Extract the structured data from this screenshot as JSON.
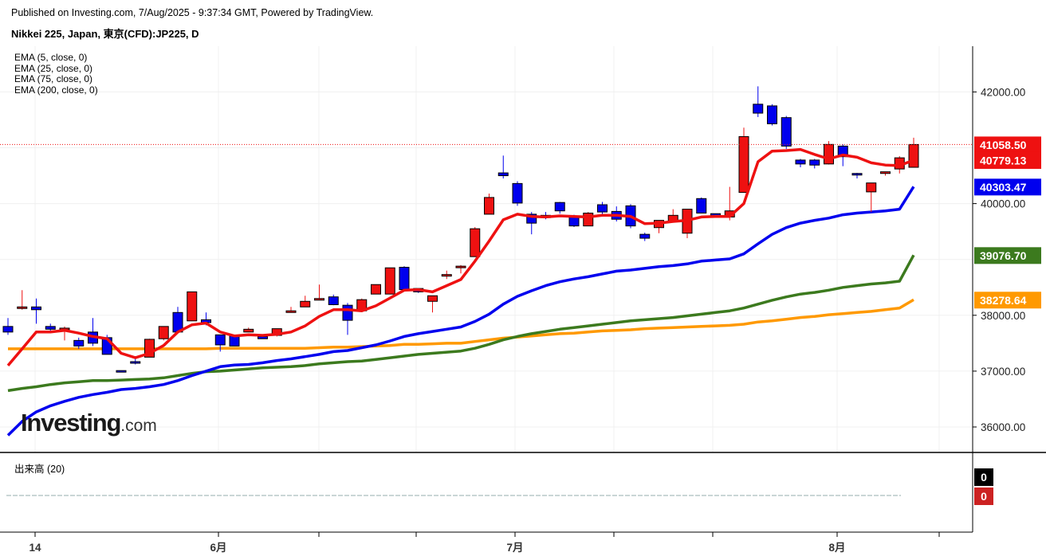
{
  "header": {
    "published": "Published on Investing.com, 7/Aug/2025 - 9:37:34 GMT, Powered by TradingView.",
    "symbol": "Nikkei 225, Japan, 東京(CFD):JP225, D"
  },
  "legend": [
    "EMA (5, close, 0)",
    "EMA (25, close, 0)",
    "EMA (75, close, 0)",
    "EMA (200, close, 0)"
  ],
  "logo": {
    "main": "Investing",
    "suffix": ".com"
  },
  "volume_panel": {
    "label": "出来高 (20)",
    "badges": [
      "0",
      "0"
    ]
  },
  "colors": {
    "up_candle": "#ee1111",
    "down_candle": "#0000ee",
    "ema5": "#ee1111",
    "ema25": "#0000ee",
    "ema75": "#3c7a1e",
    "ema200": "#ff9900"
  },
  "chart_data": {
    "type": "candlestick",
    "y_axis": {
      "ticks": [
        "42000.00",
        "40000.00",
        "38000.00",
        "37000.00",
        "36000.00"
      ],
      "ylim": [
        35500,
        42800
      ]
    },
    "x_axis": {
      "labels": [
        "14",
        "6月",
        "7月",
        "8月"
      ]
    },
    "last_close_line": 41058.5,
    "price_badges": [
      {
        "label": "41058.50",
        "value": 41058.5,
        "color": "#ee1111"
      },
      {
        "label": "40779.13",
        "value": 40779.13,
        "color": "#ee1111"
      },
      {
        "label": "40303.47",
        "value": 40303.47,
        "color": "#0000ee"
      },
      {
        "label": "39076.70",
        "value": 39076.7,
        "color": "#3c7a1e"
      },
      {
        "label": "38278.64",
        "value": 38278.64,
        "color": "#ff9900"
      }
    ],
    "candles": [
      {
        "o": 37800,
        "h": 37950,
        "c": 37700,
        "l": 37650
      },
      {
        "o": 38150,
        "h": 38450,
        "c": 38150,
        "l": 38100
      },
      {
        "o": 38150,
        "h": 38300,
        "c": 38100,
        "l": 37850
      },
      {
        "o": 37800,
        "h": 37850,
        "c": 37750,
        "l": 37700
      },
      {
        "o": 37770,
        "h": 37800,
        "c": 37770,
        "l": 37550
      },
      {
        "o": 37550,
        "h": 37600,
        "c": 37450,
        "l": 37400
      },
      {
        "o": 37700,
        "h": 37950,
        "c": 37500,
        "l": 37450
      },
      {
        "o": 37600,
        "h": 37650,
        "c": 37300,
        "l": 37300
      },
      {
        "o": 37010,
        "h": 37010,
        "c": 37000,
        "l": 36990
      },
      {
        "o": 37170,
        "h": 37220,
        "c": 37150,
        "l": 37120
      },
      {
        "o": 37250,
        "h": 37580,
        "c": 37570,
        "l": 37250
      },
      {
        "o": 37580,
        "h": 37800,
        "c": 37800,
        "l": 37550
      },
      {
        "o": 38050,
        "h": 38150,
        "c": 37700,
        "l": 37700
      },
      {
        "o": 37900,
        "h": 38420,
        "c": 38420,
        "l": 37900
      },
      {
        "o": 37920,
        "h": 38050,
        "c": 37870,
        "l": 37820
      },
      {
        "o": 37650,
        "h": 37650,
        "c": 37470,
        "l": 37350
      },
      {
        "o": 37640,
        "h": 37650,
        "c": 37450,
        "l": 37450
      },
      {
        "o": 37700,
        "h": 37780,
        "c": 37750,
        "l": 37700
      },
      {
        "o": 37620,
        "h": 37650,
        "c": 37580,
        "l": 37580
      },
      {
        "o": 37640,
        "h": 37760,
        "c": 37760,
        "l": 37620
      },
      {
        "o": 38050,
        "h": 38150,
        "c": 38080,
        "l": 38050
      },
      {
        "o": 38150,
        "h": 38350,
        "c": 38250,
        "l": 38150
      },
      {
        "o": 38300,
        "h": 38550,
        "c": 38300,
        "l": 38300
      },
      {
        "o": 38330,
        "h": 38370,
        "c": 38190,
        "l": 38180
      },
      {
        "o": 38180,
        "h": 38220,
        "c": 37910,
        "l": 37650
      },
      {
        "o": 38080,
        "h": 38300,
        "c": 38280,
        "l": 38080
      },
      {
        "o": 38380,
        "h": 38550,
        "c": 38550,
        "l": 38380
      },
      {
        "o": 38380,
        "h": 38850,
        "c": 38850,
        "l": 38380
      },
      {
        "o": 38860,
        "h": 38880,
        "c": 38460,
        "l": 38460
      },
      {
        "o": 38480,
        "h": 38480,
        "c": 38420,
        "l": 38400
      },
      {
        "o": 38250,
        "h": 38350,
        "c": 38350,
        "l": 38050
      },
      {
        "o": 38730,
        "h": 38800,
        "c": 38730,
        "l": 38650
      },
      {
        "o": 38880,
        "h": 38900,
        "c": 38880,
        "l": 38750
      },
      {
        "o": 39050,
        "h": 39580,
        "c": 39550,
        "l": 39050
      },
      {
        "o": 39810,
        "h": 40180,
        "c": 40110,
        "l": 39810
      },
      {
        "o": 40550,
        "h": 40860,
        "c": 40500,
        "l": 40450
      },
      {
        "o": 40360,
        "h": 40400,
        "c": 40010,
        "l": 39960
      },
      {
        "o": 39810,
        "h": 39850,
        "c": 39650,
        "l": 39450
      },
      {
        "o": 39790,
        "h": 39850,
        "c": 39750,
        "l": 39720
      },
      {
        "o": 40020,
        "h": 40030,
        "c": 39870,
        "l": 39820
      },
      {
        "o": 39780,
        "h": 39800,
        "c": 39600,
        "l": 39580
      },
      {
        "o": 39600,
        "h": 39850,
        "c": 39830,
        "l": 39600
      },
      {
        "o": 39980,
        "h": 40030,
        "c": 39850,
        "l": 39800
      },
      {
        "o": 39860,
        "h": 39950,
        "c": 39720,
        "l": 39680
      },
      {
        "o": 39960,
        "h": 39990,
        "c": 39600,
        "l": 39560
      },
      {
        "o": 39450,
        "h": 39480,
        "c": 39380,
        "l": 39330
      },
      {
        "o": 39570,
        "h": 39700,
        "c": 39700,
        "l": 39470
      },
      {
        "o": 39680,
        "h": 39900,
        "c": 39790,
        "l": 39680
      },
      {
        "o": 39470,
        "h": 39900,
        "c": 39900,
        "l": 39380
      },
      {
        "o": 40090,
        "h": 40110,
        "c": 39830,
        "l": 39830
      },
      {
        "o": 39820,
        "h": 39820,
        "c": 39790,
        "l": 39780
      },
      {
        "o": 39760,
        "h": 40300,
        "c": 39870,
        "l": 39700
      },
      {
        "o": 40200,
        "h": 41360,
        "c": 41200,
        "l": 40200
      },
      {
        "o": 41780,
        "h": 42100,
        "c": 41620,
        "l": 41550
      },
      {
        "o": 41750,
        "h": 41780,
        "c": 41430,
        "l": 41400
      },
      {
        "o": 41540,
        "h": 41570,
        "c": 41030,
        "l": 40980
      },
      {
        "o": 40780,
        "h": 40800,
        "c": 40710,
        "l": 40650
      },
      {
        "o": 40780,
        "h": 40800,
        "c": 40690,
        "l": 40630
      },
      {
        "o": 40710,
        "h": 41120,
        "c": 41060,
        "l": 40700
      },
      {
        "o": 41030,
        "h": 41060,
        "c": 40840,
        "l": 40670
      },
      {
        "o": 40540,
        "h": 40550,
        "c": 40530,
        "l": 40450
      },
      {
        "o": 40210,
        "h": 40370,
        "c": 40370,
        "l": 39850
      },
      {
        "o": 40540,
        "h": 40570,
        "c": 40570,
        "l": 40500
      },
      {
        "o": 40620,
        "h": 40850,
        "c": 40820,
        "l": 40540
      },
      {
        "o": 40650,
        "h": 41180,
        "c": 41058.5,
        "l": 40650
      }
    ],
    "ema5": [
      37100,
      37400,
      37700,
      37700,
      37730,
      37680,
      37620,
      37580,
      37320,
      37240,
      37320,
      37460,
      37700,
      37830,
      37860,
      37700,
      37630,
      37650,
      37640,
      37660,
      37700,
      37810,
      37980,
      38100,
      38100,
      38080,
      38170,
      38310,
      38450,
      38460,
      38420,
      38530,
      38640,
      38970,
      39330,
      39710,
      39810,
      39770,
      39760,
      39780,
      39770,
      39760,
      39790,
      39790,
      39770,
      39640,
      39650,
      39680,
      39700,
      39760,
      39770,
      39770,
      40000,
      40750,
      40940,
      40950,
      40970,
      40880,
      40800,
      40870,
      40830,
      40730,
      40690,
      40680,
      40779.13
    ],
    "ema25": [
      35850,
      36100,
      36270,
      36380,
      36460,
      36530,
      36580,
      36620,
      36670,
      36690,
      36720,
      36760,
      36830,
      36920,
      37000,
      37080,
      37110,
      37120,
      37150,
      37190,
      37220,
      37260,
      37300,
      37350,
      37370,
      37420,
      37470,
      37540,
      37620,
      37670,
      37710,
      37750,
      37790,
      37890,
      38020,
      38200,
      38340,
      38440,
      38530,
      38600,
      38650,
      38690,
      38740,
      38790,
      38810,
      38840,
      38870,
      38890,
      38920,
      38970,
      38990,
      39010,
      39100,
      39280,
      39450,
      39570,
      39650,
      39700,
      39740,
      39800,
      39830,
      39850,
      39870,
      39900,
      40303.47
    ],
    "ema75": [
      36650,
      36690,
      36720,
      36760,
      36790,
      36810,
      36830,
      36830,
      36840,
      36850,
      36860,
      36880,
      36920,
      36960,
      36990,
      37000,
      37020,
      37040,
      37060,
      37070,
      37080,
      37100,
      37130,
      37150,
      37170,
      37180,
      37210,
      37240,
      37270,
      37300,
      37320,
      37340,
      37360,
      37410,
      37480,
      37560,
      37620,
      37670,
      37710,
      37750,
      37780,
      37810,
      37840,
      37870,
      37900,
      37920,
      37940,
      37960,
      37990,
      38020,
      38050,
      38080,
      38130,
      38200,
      38270,
      38330,
      38380,
      38410,
      38450,
      38500,
      38530,
      38560,
      38580,
      38610,
      39076.7
    ],
    "ema200": [
      37400,
      37400,
      37400,
      37400,
      37400,
      37400,
      37400,
      37400,
      37400,
      37400,
      37400,
      37400,
      37400,
      37400,
      37400,
      37410,
      37410,
      37410,
      37410,
      37410,
      37410,
      37410,
      37420,
      37430,
      37430,
      37440,
      37450,
      37460,
      37480,
      37480,
      37490,
      37500,
      37500,
      37530,
      37560,
      37590,
      37610,
      37630,
      37650,
      37670,
      37680,
      37700,
      37720,
      37730,
      37740,
      37760,
      37770,
      37780,
      37790,
      37800,
      37810,
      37820,
      37840,
      37880,
      37900,
      37930,
      37960,
      37980,
      38010,
      38030,
      38050,
      38070,
      38100,
      38130,
      38278.64
    ]
  }
}
